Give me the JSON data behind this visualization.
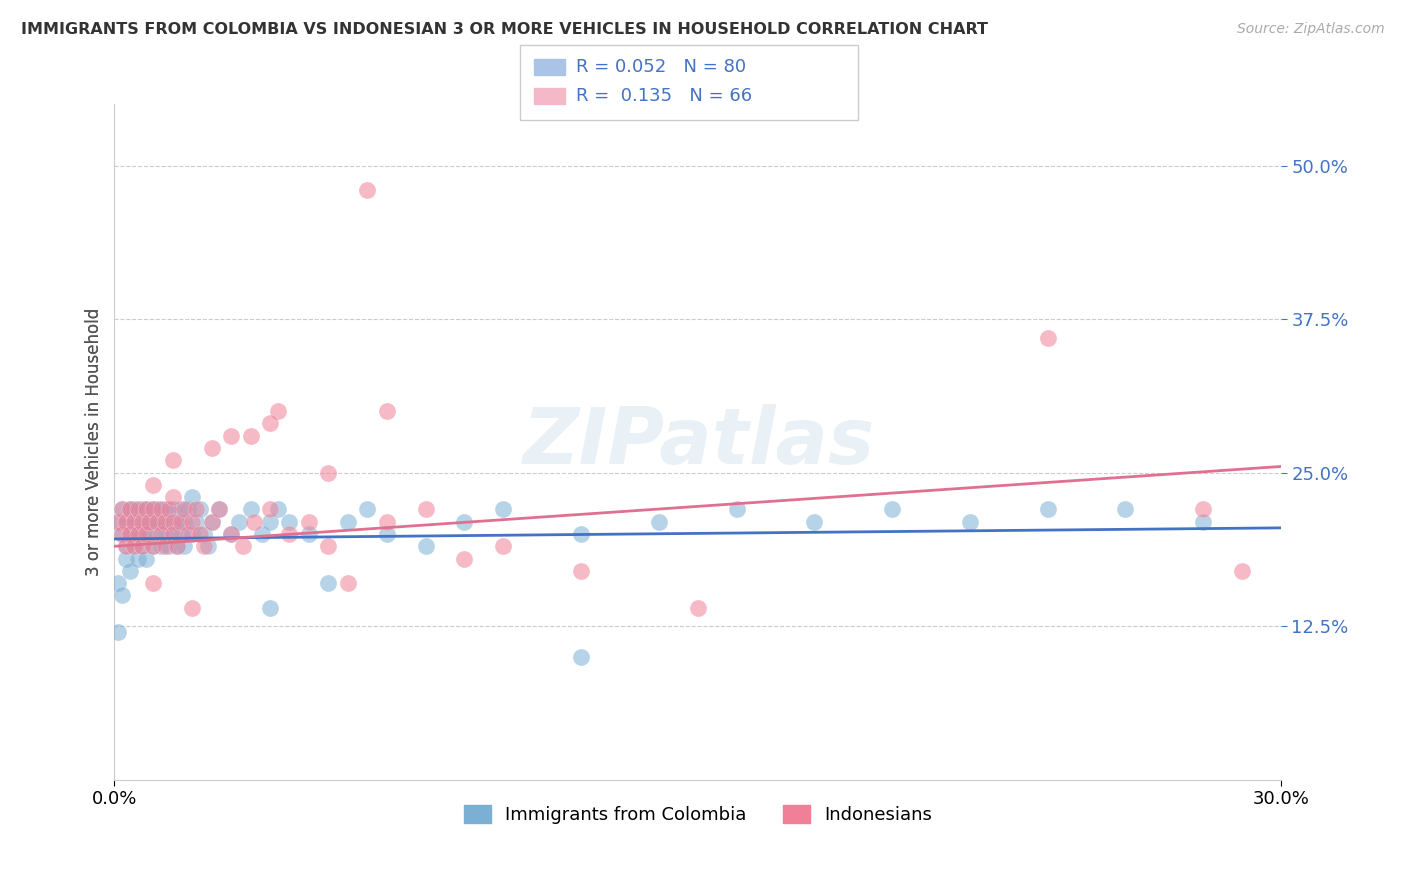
{
  "title": "IMMIGRANTS FROM COLOMBIA VS INDONESIAN 3 OR MORE VEHICLES IN HOUSEHOLD CORRELATION CHART",
  "source": "Source: ZipAtlas.com",
  "ylabel_label": "3 or more Vehicles in Household",
  "legend_labels": [
    "Immigrants from Colombia",
    "Indonesians"
  ],
  "colombia_color": "#7bafd4",
  "indonesia_color": "#f08098",
  "colombia_line_color": "#4472c4",
  "indonesia_line_color": "#e07090",
  "watermark_text": "ZIPatlas",
  "R_colombia": 0.052,
  "R_indonesia": 0.135,
  "N_colombia": 80,
  "N_indonesia": 66,
  "xlim": [
    0.0,
    0.3
  ],
  "ylim": [
    0.0,
    0.55
  ],
  "ytick_vals": [
    0.125,
    0.25,
    0.375,
    0.5
  ],
  "ytick_labels": [
    "12.5%",
    "25.0%",
    "37.5%",
    "50.0%"
  ],
  "xtick_vals": [
    0.0,
    0.3
  ],
  "xtick_labels": [
    "0.0%",
    "30.0%"
  ],
  "colombia_scatter_x": [
    0.001,
    0.001,
    0.002,
    0.002,
    0.003,
    0.003,
    0.003,
    0.004,
    0.004,
    0.004,
    0.005,
    0.005,
    0.005,
    0.006,
    0.006,
    0.006,
    0.007,
    0.007,
    0.007,
    0.008,
    0.008,
    0.008,
    0.009,
    0.009,
    0.01,
    0.01,
    0.01,
    0.011,
    0.011,
    0.012,
    0.012,
    0.013,
    0.013,
    0.014,
    0.014,
    0.015,
    0.015,
    0.016,
    0.016,
    0.017,
    0.017,
    0.018,
    0.018,
    0.019,
    0.02,
    0.02,
    0.021,
    0.022,
    0.023,
    0.024,
    0.025,
    0.027,
    0.03,
    0.032,
    0.035,
    0.038,
    0.04,
    0.042,
    0.045,
    0.05,
    0.055,
    0.06,
    0.065,
    0.07,
    0.08,
    0.09,
    0.1,
    0.12,
    0.14,
    0.16,
    0.18,
    0.2,
    0.22,
    0.24,
    0.001,
    0.002,
    0.26,
    0.28,
    0.12,
    0.04
  ],
  "colombia_scatter_y": [
    0.12,
    0.21,
    0.2,
    0.22,
    0.19,
    0.21,
    0.18,
    0.2,
    0.22,
    0.17,
    0.21,
    0.19,
    0.22,
    0.2,
    0.21,
    0.18,
    0.22,
    0.19,
    0.2,
    0.21,
    0.18,
    0.22,
    0.2,
    0.21,
    0.22,
    0.19,
    0.21,
    0.2,
    0.22,
    0.21,
    0.19,
    0.2,
    0.22,
    0.21,
    0.19,
    0.22,
    0.2,
    0.21,
    0.19,
    0.22,
    0.2,
    0.21,
    0.19,
    0.22,
    0.2,
    0.23,
    0.21,
    0.22,
    0.2,
    0.19,
    0.21,
    0.22,
    0.2,
    0.21,
    0.22,
    0.2,
    0.21,
    0.22,
    0.21,
    0.2,
    0.16,
    0.21,
    0.22,
    0.2,
    0.19,
    0.21,
    0.22,
    0.2,
    0.21,
    0.22,
    0.21,
    0.22,
    0.21,
    0.22,
    0.16,
    0.15,
    0.22,
    0.21,
    0.1,
    0.14
  ],
  "indonesia_scatter_x": [
    0.001,
    0.002,
    0.002,
    0.003,
    0.003,
    0.004,
    0.004,
    0.005,
    0.005,
    0.006,
    0.006,
    0.007,
    0.007,
    0.008,
    0.008,
    0.009,
    0.01,
    0.01,
    0.011,
    0.012,
    0.012,
    0.013,
    0.013,
    0.014,
    0.015,
    0.015,
    0.016,
    0.017,
    0.018,
    0.019,
    0.02,
    0.021,
    0.022,
    0.023,
    0.025,
    0.027,
    0.03,
    0.033,
    0.036,
    0.04,
    0.045,
    0.05,
    0.055,
    0.06,
    0.07,
    0.08,
    0.09,
    0.1,
    0.12,
    0.15,
    0.24,
    0.28,
    0.29,
    0.01,
    0.02,
    0.065,
    0.035,
    0.042,
    0.015,
    0.025,
    0.03,
    0.04,
    0.055,
    0.07,
    0.01,
    0.015
  ],
  "indonesia_scatter_y": [
    0.21,
    0.2,
    0.22,
    0.19,
    0.21,
    0.2,
    0.22,
    0.21,
    0.19,
    0.22,
    0.2,
    0.21,
    0.19,
    0.22,
    0.2,
    0.21,
    0.22,
    0.19,
    0.21,
    0.22,
    0.2,
    0.21,
    0.19,
    0.22,
    0.21,
    0.2,
    0.19,
    0.21,
    0.22,
    0.2,
    0.21,
    0.22,
    0.2,
    0.19,
    0.21,
    0.22,
    0.2,
    0.19,
    0.21,
    0.22,
    0.2,
    0.21,
    0.19,
    0.16,
    0.21,
    0.22,
    0.18,
    0.19,
    0.17,
    0.14,
    0.36,
    0.22,
    0.17,
    0.16,
    0.14,
    0.48,
    0.28,
    0.3,
    0.26,
    0.27,
    0.28,
    0.29,
    0.25,
    0.3,
    0.24,
    0.23
  ]
}
